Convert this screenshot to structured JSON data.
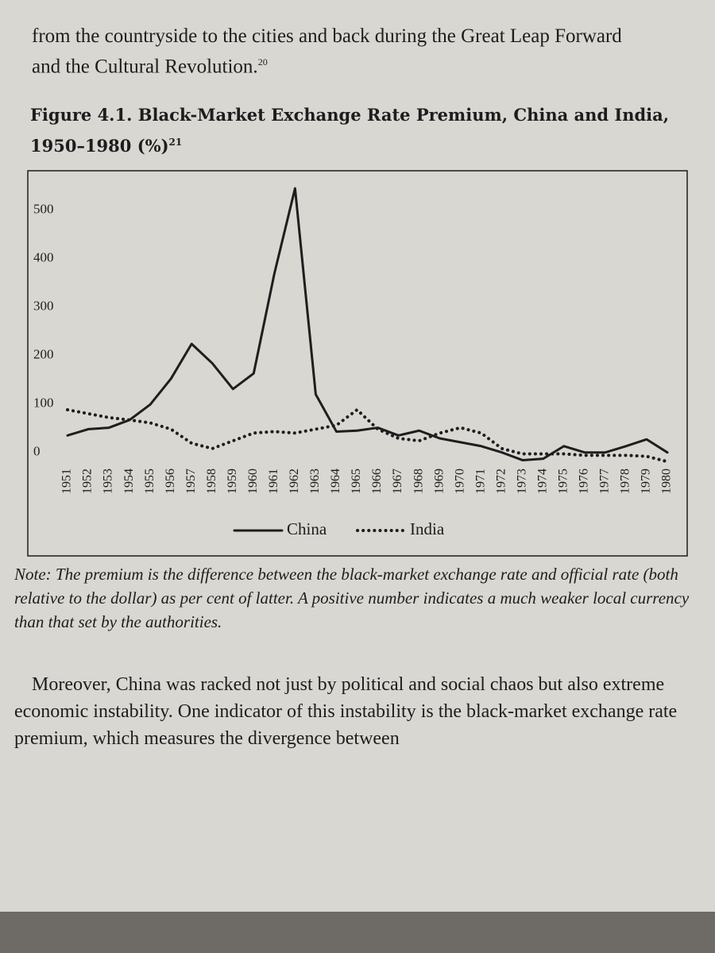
{
  "text_top": [
    "from the countryside to the cities and back during the Great Leap Forward",
    "and the Cultural Revolution."
  ],
  "top_ref": "20",
  "chart_data": {
    "type": "line",
    "title": "Figure 4.1. Black-Market Exchange Rate Premium, China and India, 1950–1980 (%)",
    "title_ref": "21",
    "categories": [
      "1951",
      "1952",
      "1953",
      "1954",
      "1955",
      "1956",
      "1957",
      "1958",
      "1959",
      "1960",
      "1961",
      "1962",
      "1963",
      "1964",
      "1965",
      "1966",
      "1967",
      "1968",
      "1969",
      "1970",
      "1971",
      "1972",
      "1973",
      "1974",
      "1975",
      "1976",
      "1977",
      "1978",
      "1979",
      "1980"
    ],
    "series": [
      {
        "name": "China",
        "color": "#1e1e1e",
        "style": "solid",
        "values": [
          35,
          48,
          51,
          67,
          99,
          152,
          224,
          184,
          131,
          163,
          369,
          545,
          120,
          43,
          45,
          51,
          35,
          45,
          29,
          21,
          13,
          0,
          -16,
          -13,
          13,
          0,
          0,
          13,
          27,
          0
        ]
      },
      {
        "name": "India",
        "color": "#1e1e1e",
        "style": "dotted",
        "values": [
          88,
          80,
          72,
          67,
          61,
          48,
          19,
          8,
          24,
          40,
          43,
          40,
          48,
          56,
          88,
          48,
          29,
          24,
          40,
          51,
          40,
          8,
          -3,
          -3,
          -3,
          -6,
          -6,
          -6,
          -8,
          -19
        ]
      }
    ],
    "ylim": [
      -30,
      560
    ],
    "yticks": [
      0,
      100,
      200,
      300,
      400,
      500
    ],
    "legend": "bottom",
    "grid": false
  },
  "note": "Note: The premium is the difference between the black-market exchange rate and official rate (both relative to the dollar) as per cent of latter. A positive number indicates a much weaker local currency than that set by the authorities.",
  "paragraph": "Moreover, China was racked not just by political and social chaos but also extreme economic instability. One indicator of this instability is the black-market exchange rate premium, which measures the divergence between"
}
